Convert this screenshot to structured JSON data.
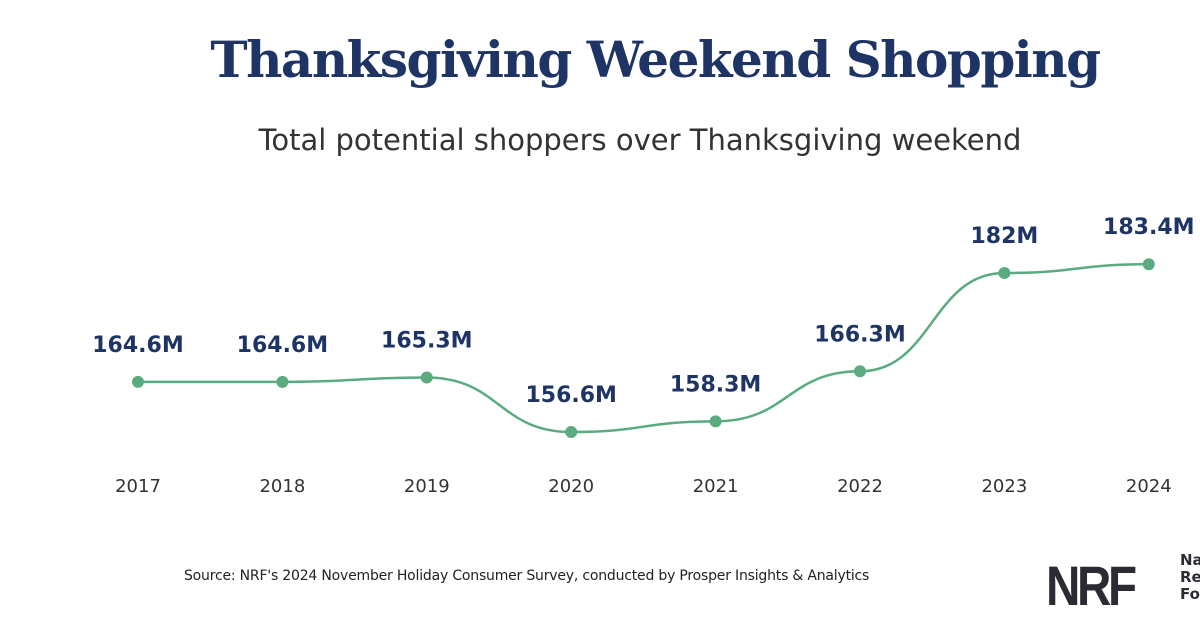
{
  "chart_data": {
    "type": "line",
    "title": "Thanksgiving Weekend Shopping",
    "subtitle": "Total potential shoppers over Thanksgiving weekend",
    "categories": [
      "2017",
      "2018",
      "2019",
      "2020",
      "2021",
      "2022",
      "2023",
      "2024"
    ],
    "values": [
      164.6,
      164.6,
      165.3,
      156.6,
      158.3,
      166.3,
      182,
      183.4
    ],
    "data_labels": [
      "164.6M",
      "164.6M",
      "165.3M",
      "156.6M",
      "158.3M",
      "166.3M",
      "182M",
      "183.4M"
    ],
    "unit": "M",
    "grid": false,
    "smooth": true,
    "colors": {
      "line": "#5aab7f",
      "label": "#1e3464",
      "title": "#1e3464"
    }
  },
  "footer": {
    "source": "Source: NRF's 2024 November Holiday Consumer Survey, conducted by Prosper Insights & Analytics",
    "logo_text": "NRF",
    "logo_side": [
      "Na",
      "Re",
      "Fo"
    ]
  }
}
